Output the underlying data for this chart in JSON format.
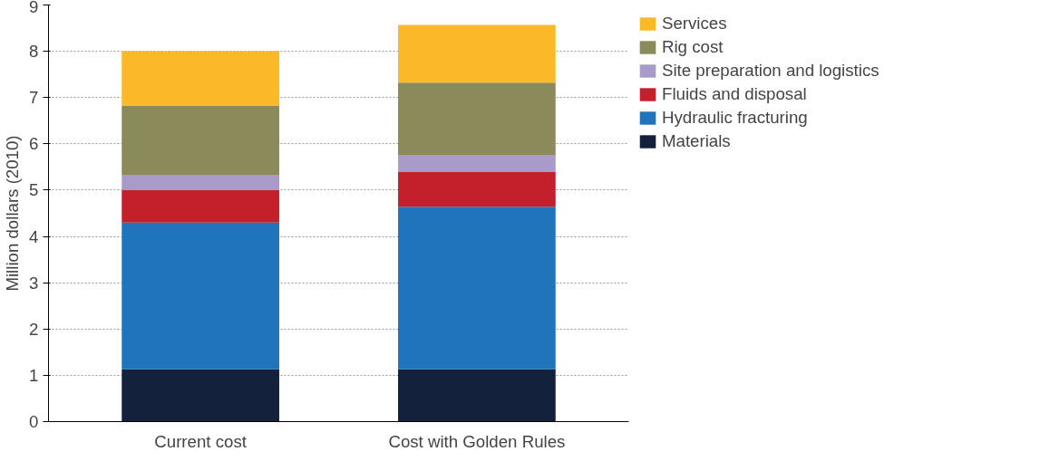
{
  "chart_data": {
    "type": "bar",
    "stacked": true,
    "ylabel": "Million dollars (2010)",
    "categories": [
      "Current cost",
      "Cost with Golden Rules"
    ],
    "series": [
      {
        "name": "Materials",
        "color": "#14213d",
        "values": [
          1.13,
          1.13
        ]
      },
      {
        "name": "Hydraulic fracturing",
        "color": "#1f74bb",
        "values": [
          3.17,
          3.51
        ]
      },
      {
        "name": "Fluids and disposal",
        "color": "#c4202b",
        "values": [
          0.7,
          0.75
        ]
      },
      {
        "name": "Site preparation and logistics",
        "color": "#a99bc9",
        "values": [
          0.33,
          0.37
        ]
      },
      {
        "name": "Rig cost",
        "color": "#8b8a5a",
        "values": [
          1.5,
          1.56
        ]
      },
      {
        "name": "Services",
        "color": "#fbb829",
        "values": [
          1.17,
          1.25
        ]
      }
    ],
    "ylim": [
      0,
      9
    ],
    "yticks": [
      0,
      1,
      2,
      3,
      4,
      5,
      6,
      7,
      8,
      9
    ],
    "grid": "y",
    "legend": "right"
  }
}
